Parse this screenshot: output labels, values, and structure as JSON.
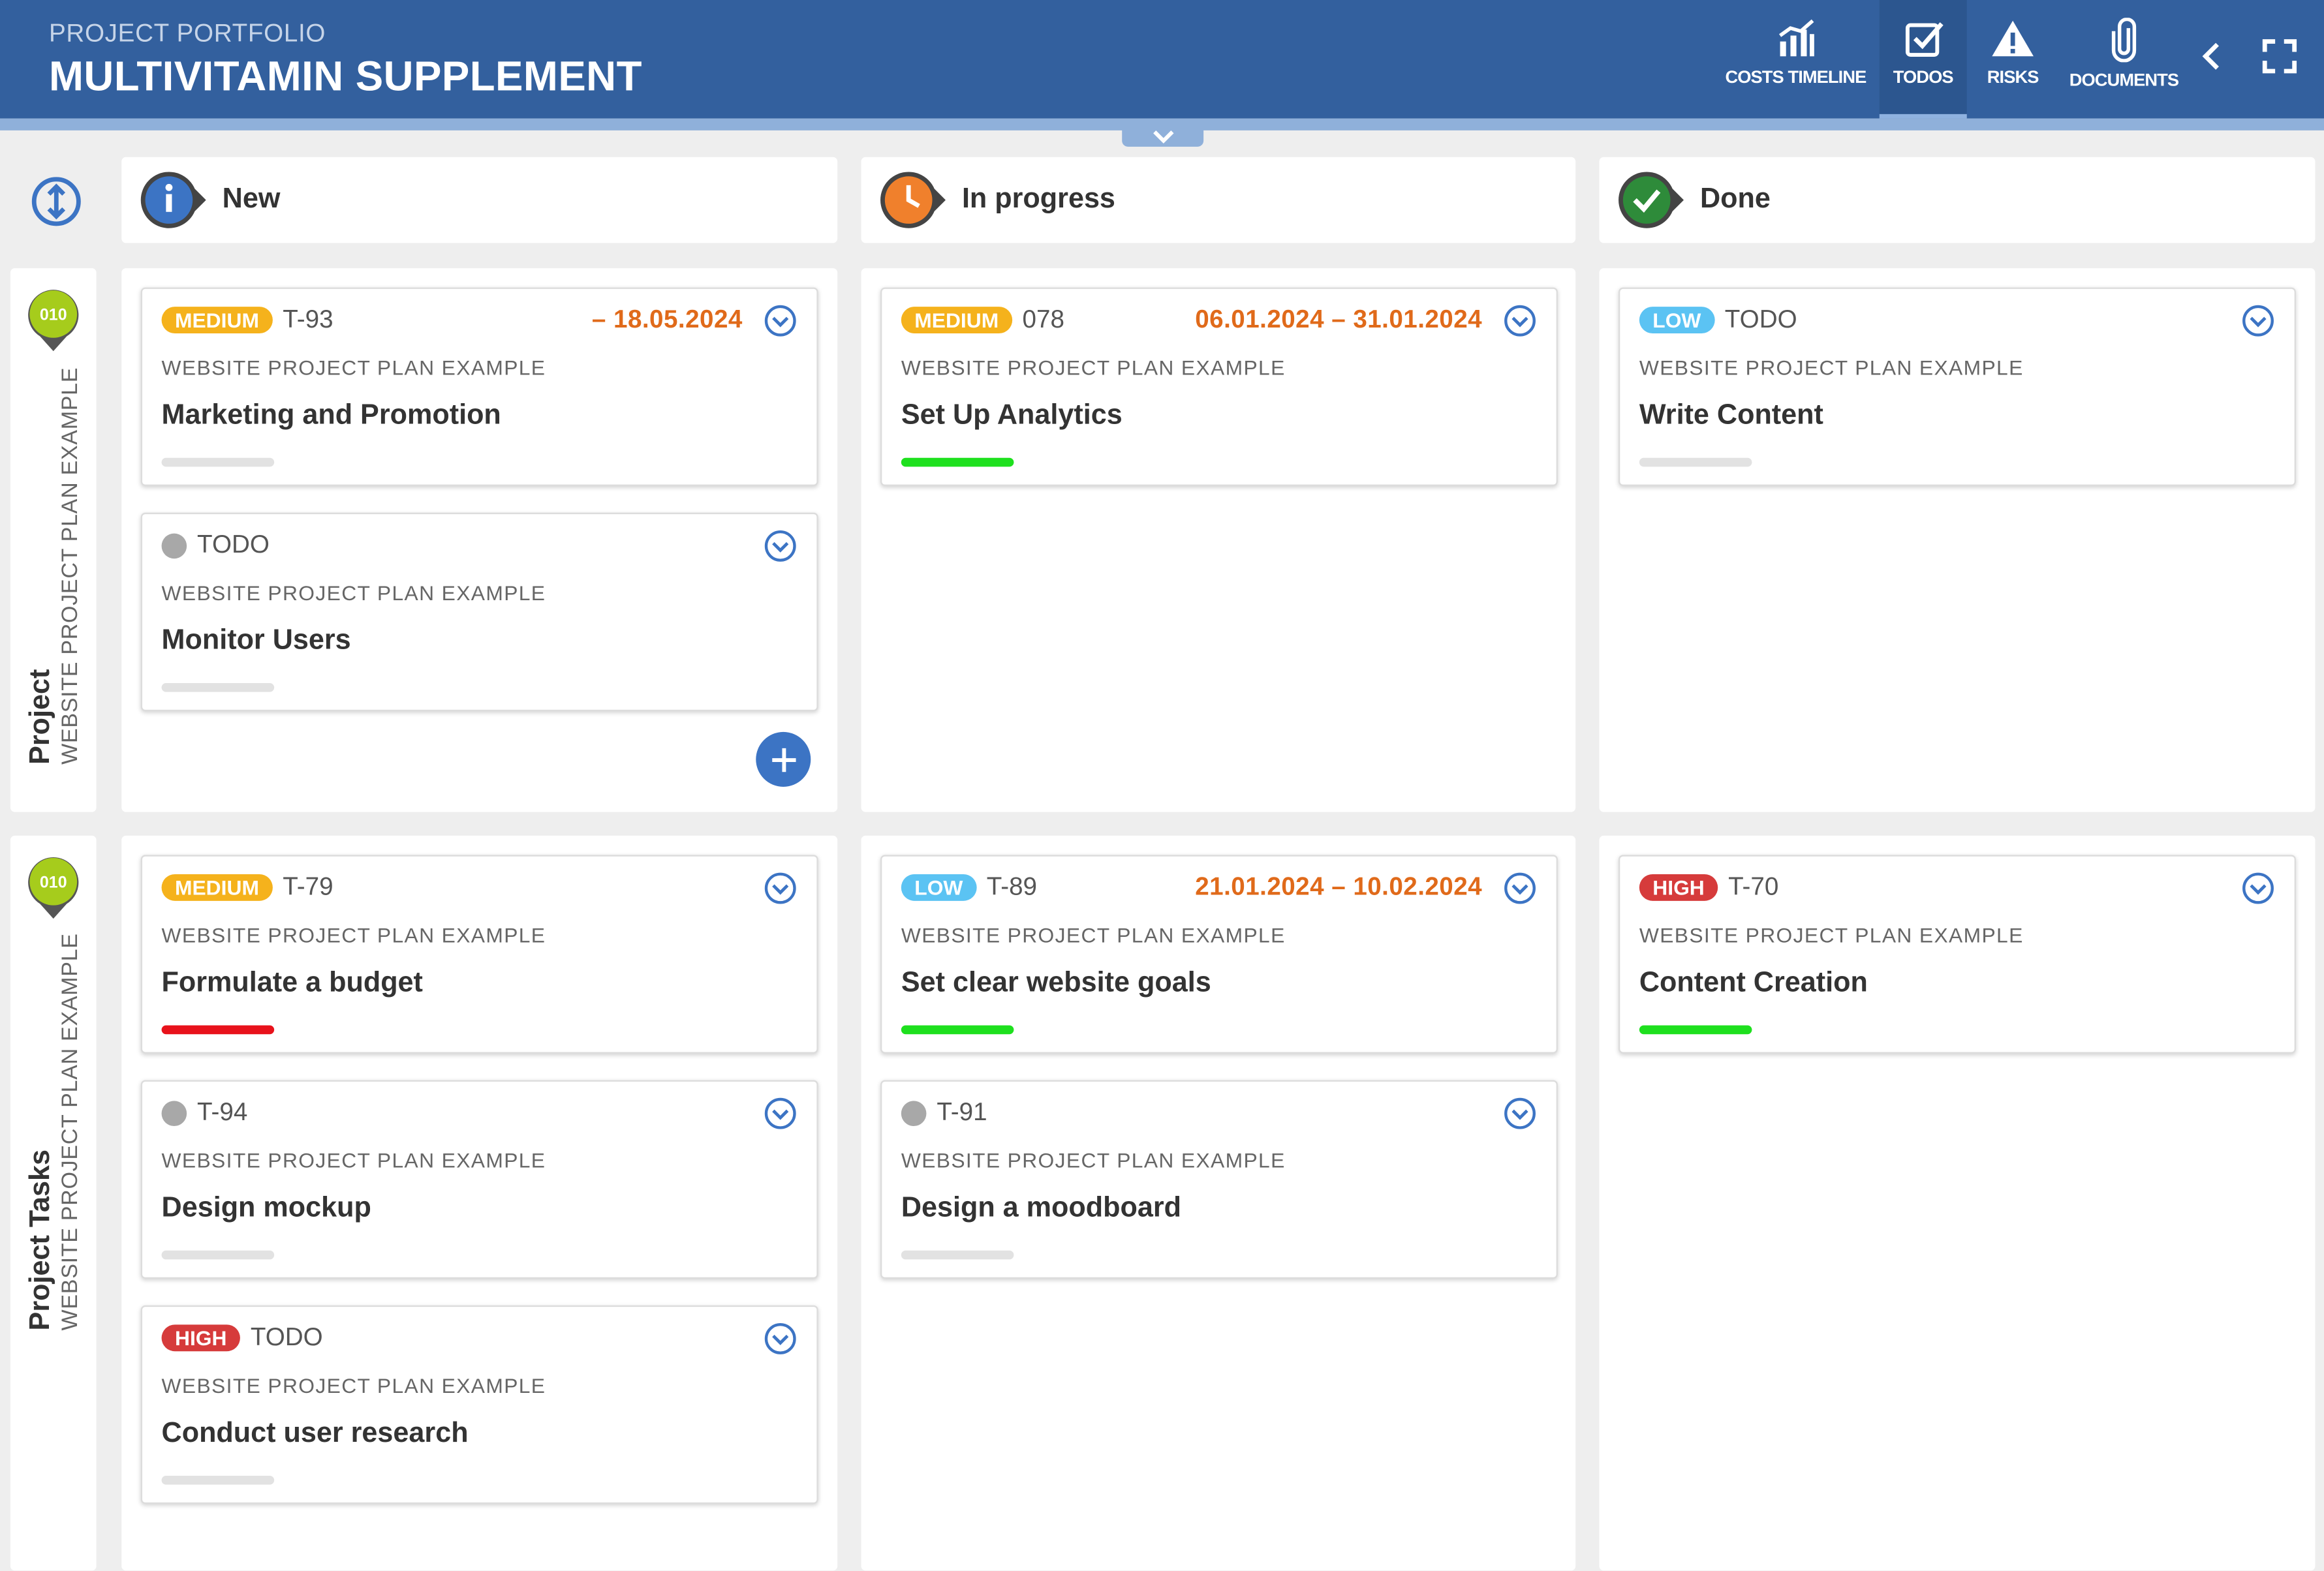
{
  "header": {
    "subtitle": "PROJECT PORTFOLIO",
    "title": "MULTIVITAMIN SUPPLEMENT",
    "nav": [
      {
        "label": "COSTS TIMELINE",
        "icon": "chart-icon"
      },
      {
        "label": "TODOS",
        "icon": "checkbox-icon",
        "active": true
      },
      {
        "label": "RISKS",
        "icon": "warning-icon"
      },
      {
        "label": "DOCUMENTS",
        "icon": "paperclip-icon"
      }
    ]
  },
  "columns": [
    {
      "title": "New",
      "icon": "info-icon",
      "color": "#3c74c4"
    },
    {
      "title": "In progress",
      "icon": "clock-icon",
      "color": "#f0802c"
    },
    {
      "title": "Done",
      "icon": "check-circle-icon",
      "color": "#2e8b3a"
    }
  ],
  "rows": [
    {
      "badge": "010",
      "label": "Project",
      "sublabel": "WEBSITE PROJECT PLAN EXAMPLE"
    },
    {
      "badge": "010",
      "label": "Project Tasks",
      "sublabel": "WEBSITE PROJECT PLAN EXAMPLE"
    }
  ],
  "cards": {
    "r0_new_0": {
      "priority": "MEDIUM",
      "id": "T-93",
      "date": "– 18.05.2024",
      "project": "WEBSITE PROJECT PLAN EXAMPLE",
      "title": "Marketing and Promotion",
      "bar": "grey"
    },
    "r0_new_1": {
      "priority": "",
      "id": "TODO",
      "date": "",
      "project": "WEBSITE PROJECT PLAN EXAMPLE",
      "title": "Monitor Users",
      "bar": "grey"
    },
    "r0_prog_0": {
      "priority": "MEDIUM",
      "id": "078",
      "date": "06.01.2024 – 31.01.2024",
      "project": "WEBSITE PROJECT PLAN EXAMPLE",
      "title": "Set Up Analytics",
      "bar": "green"
    },
    "r0_done_0": {
      "priority": "LOW",
      "id": "TODO",
      "date": "",
      "project": "WEBSITE PROJECT PLAN EXAMPLE",
      "title": "Write Content",
      "bar": "grey"
    },
    "r1_new_0": {
      "priority": "MEDIUM",
      "id": "T-79",
      "date": "",
      "project": "WEBSITE PROJECT PLAN EXAMPLE",
      "title": "Formulate a budget",
      "bar": "red"
    },
    "r1_new_1": {
      "priority": "",
      "id": "T-94",
      "date": "",
      "project": "WEBSITE PROJECT PLAN EXAMPLE",
      "title": "Design mockup",
      "bar": "grey"
    },
    "r1_new_2": {
      "priority": "HIGH",
      "id": "TODO",
      "date": "",
      "project": "WEBSITE PROJECT PLAN EXAMPLE",
      "title": "Conduct user research",
      "bar": "grey"
    },
    "r1_prog_0": {
      "priority": "LOW",
      "id": "T-89",
      "date": "21.01.2024 – 10.02.2024",
      "project": "WEBSITE PROJECT PLAN EXAMPLE",
      "title": "Set clear website goals",
      "bar": "green"
    },
    "r1_prog_1": {
      "priority": "",
      "id": "T-91",
      "date": "",
      "project": "WEBSITE PROJECT PLAN EXAMPLE",
      "title": "Design a moodboard",
      "bar": "grey"
    },
    "r1_done_0": {
      "priority": "HIGH",
      "id": "T-70",
      "date": "",
      "project": "WEBSITE PROJECT PLAN EXAMPLE",
      "title": "Content Creation",
      "bar": "green"
    }
  },
  "colors": {
    "header": "#33609e",
    "medium": "#f5b21c",
    "low": "#5bc3f3",
    "high": "#d63b3b",
    "date": "#e06a1a",
    "progress_green": "#1ee01e",
    "progress_red": "#e8121b"
  }
}
